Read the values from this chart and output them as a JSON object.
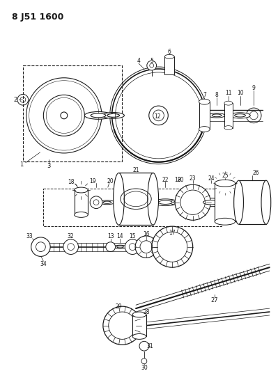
{
  "title": "8 J51 1600",
  "bg_color": "#ffffff",
  "line_color": "#1a1a1a",
  "title_fontsize": 9,
  "fig_width": 3.99,
  "fig_height": 5.33,
  "dpi": 100,
  "layout": {
    "xlim": [
      0,
      399
    ],
    "ylim": [
      0,
      533
    ]
  }
}
